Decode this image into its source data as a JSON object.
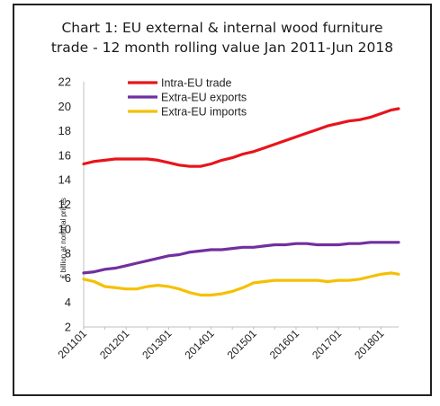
{
  "chart_data": {
    "type": "line",
    "title_lines": [
      "Chart 1: EU external & internal wood furniture",
      "trade - 12 month rolling value Jan 2011-Jun 2018"
    ],
    "ylabel": "€ billion at nominal prices",
    "xlabel": "",
    "ylim": [
      2,
      22
    ],
    "yticks": [
      2,
      4,
      6,
      8,
      10,
      12,
      14,
      16,
      18,
      20,
      22
    ],
    "x_start": "2011-01",
    "x_end": "2018-06",
    "xtick_labels": [
      "201101",
      "201201",
      "201301",
      "201401",
      "201501",
      "201601",
      "201701",
      "201801"
    ],
    "grid": false,
    "legend_position": "top-center",
    "series": [
      {
        "name": "Intra-EU trade",
        "color": "#e8141b",
        "points": [
          [
            "2011-01",
            15.3
          ],
          [
            "2011-04",
            15.5
          ],
          [
            "2011-07",
            15.6
          ],
          [
            "2011-10",
            15.7
          ],
          [
            "2012-01",
            15.7
          ],
          [
            "2012-04",
            15.7
          ],
          [
            "2012-07",
            15.7
          ],
          [
            "2012-10",
            15.6
          ],
          [
            "2013-01",
            15.4
          ],
          [
            "2013-04",
            15.2
          ],
          [
            "2013-07",
            15.1
          ],
          [
            "2013-10",
            15.1
          ],
          [
            "2014-01",
            15.3
          ],
          [
            "2014-04",
            15.6
          ],
          [
            "2014-07",
            15.8
          ],
          [
            "2014-10",
            16.1
          ],
          [
            "2015-01",
            16.3
          ],
          [
            "2015-04",
            16.6
          ],
          [
            "2015-07",
            16.9
          ],
          [
            "2015-10",
            17.2
          ],
          [
            "2016-01",
            17.5
          ],
          [
            "2016-04",
            17.8
          ],
          [
            "2016-07",
            18.1
          ],
          [
            "2016-10",
            18.4
          ],
          [
            "2017-01",
            18.6
          ],
          [
            "2017-04",
            18.8
          ],
          [
            "2017-07",
            18.9
          ],
          [
            "2017-10",
            19.1
          ],
          [
            "2018-01",
            19.4
          ],
          [
            "2018-04",
            19.7
          ],
          [
            "2018-06",
            19.8
          ]
        ]
      },
      {
        "name": "Extra-EU exports",
        "color": "#7030a0",
        "points": [
          [
            "2011-01",
            6.4
          ],
          [
            "2011-04",
            6.5
          ],
          [
            "2011-07",
            6.7
          ],
          [
            "2011-10",
            6.8
          ],
          [
            "2012-01",
            7.0
          ],
          [
            "2012-04",
            7.2
          ],
          [
            "2012-07",
            7.4
          ],
          [
            "2012-10",
            7.6
          ],
          [
            "2013-01",
            7.8
          ],
          [
            "2013-04",
            7.9
          ],
          [
            "2013-07",
            8.1
          ],
          [
            "2013-10",
            8.2
          ],
          [
            "2014-01",
            8.3
          ],
          [
            "2014-04",
            8.3
          ],
          [
            "2014-07",
            8.4
          ],
          [
            "2014-10",
            8.5
          ],
          [
            "2015-01",
            8.5
          ],
          [
            "2015-04",
            8.6
          ],
          [
            "2015-07",
            8.7
          ],
          [
            "2015-10",
            8.7
          ],
          [
            "2016-01",
            8.8
          ],
          [
            "2016-04",
            8.8
          ],
          [
            "2016-07",
            8.7
          ],
          [
            "2016-10",
            8.7
          ],
          [
            "2017-01",
            8.7
          ],
          [
            "2017-04",
            8.8
          ],
          [
            "2017-07",
            8.8
          ],
          [
            "2017-10",
            8.9
          ],
          [
            "2018-01",
            8.9
          ],
          [
            "2018-04",
            8.9
          ],
          [
            "2018-06",
            8.9
          ]
        ]
      },
      {
        "name": "Extra-EU imports",
        "color": "#f5c000",
        "points": [
          [
            "2011-01",
            5.9
          ],
          [
            "2011-04",
            5.7
          ],
          [
            "2011-07",
            5.3
          ],
          [
            "2011-10",
            5.2
          ],
          [
            "2012-01",
            5.1
          ],
          [
            "2012-04",
            5.1
          ],
          [
            "2012-07",
            5.3
          ],
          [
            "2012-10",
            5.4
          ],
          [
            "2013-01",
            5.3
          ],
          [
            "2013-04",
            5.1
          ],
          [
            "2013-07",
            4.8
          ],
          [
            "2013-10",
            4.6
          ],
          [
            "2014-01",
            4.6
          ],
          [
            "2014-04",
            4.7
          ],
          [
            "2014-07",
            4.9
          ],
          [
            "2014-10",
            5.2
          ],
          [
            "2015-01",
            5.6
          ],
          [
            "2015-04",
            5.7
          ],
          [
            "2015-07",
            5.8
          ],
          [
            "2015-10",
            5.8
          ],
          [
            "2016-01",
            5.8
          ],
          [
            "2016-04",
            5.8
          ],
          [
            "2016-07",
            5.8
          ],
          [
            "2016-10",
            5.7
          ],
          [
            "2017-01",
            5.8
          ],
          [
            "2017-04",
            5.8
          ],
          [
            "2017-07",
            5.9
          ],
          [
            "2017-10",
            6.1
          ],
          [
            "2018-01",
            6.3
          ],
          [
            "2018-04",
            6.4
          ],
          [
            "2018-06",
            6.3
          ]
        ]
      }
    ]
  }
}
